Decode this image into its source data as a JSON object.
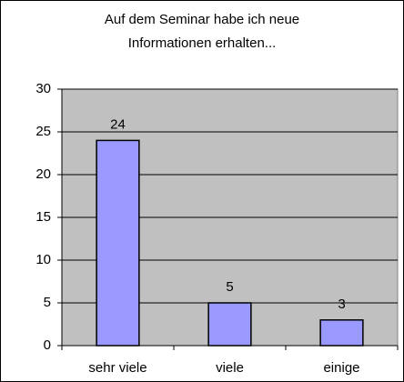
{
  "chart_data": {
    "type": "bar",
    "title": [
      "Auf dem Seminar habe ich neue",
      "Informationen erhalten..."
    ],
    "categories": [
      "sehr viele",
      "viele",
      "einige"
    ],
    "values": [
      24,
      5,
      3
    ],
    "color": "#9999ff",
    "ylim": [
      0,
      30
    ],
    "yticks": [
      0,
      5,
      10,
      15,
      20,
      25,
      30
    ],
    "grid": true
  }
}
